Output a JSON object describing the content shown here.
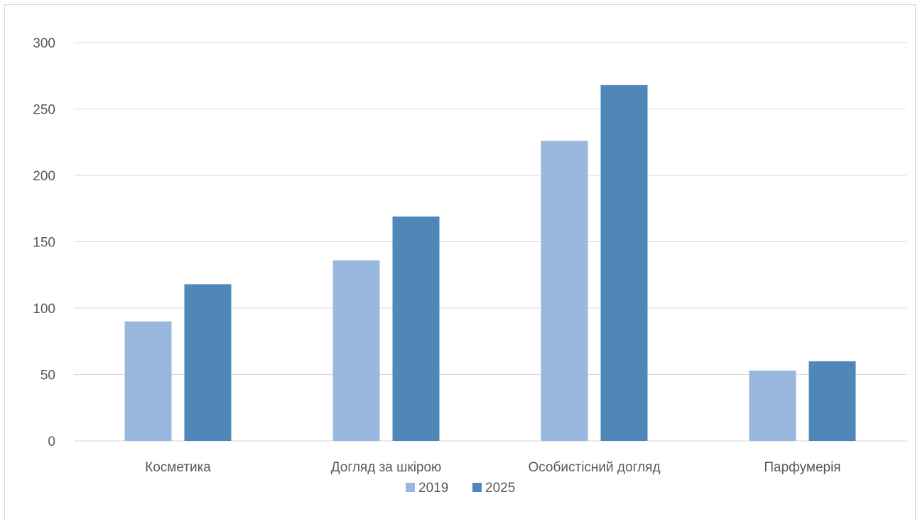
{
  "chart_data": {
    "type": "bar",
    "categories": [
      "Косметика",
      "Догляд за шкірою",
      "Особистісний догляд",
      "Парфумерія"
    ],
    "series": [
      {
        "name": "2019",
        "values": [
          90,
          136,
          226,
          53
        ],
        "color": "#9ab8de"
      },
      {
        "name": "2025",
        "values": [
          118,
          169,
          268,
          60
        ],
        "color": "#4f87bb"
      }
    ],
    "yticks": [
      "0",
      "50",
      "100",
      "150",
      "200",
      "250",
      "300"
    ],
    "ylim": [
      0,
      300
    ],
    "grid": true,
    "legend_position": "bottom",
    "gridline_color": "#d9d9d9"
  }
}
